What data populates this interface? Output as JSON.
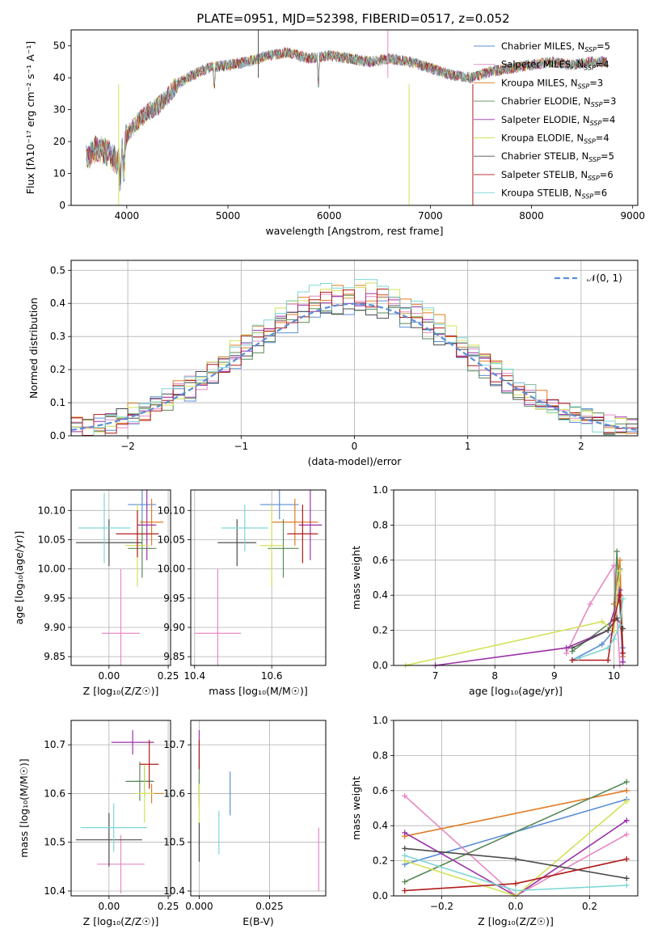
{
  "figure_title": "PLATE=0951, MJD=52398, FIBERID=0517, z=0.052",
  "colors": {
    "Chabrier MILES": "#5b8ed6",
    "Salpeter MILES": "#e78ac3",
    "Kroupa MILES": "#e07b24",
    "Chabrier ELODIE": "#5a8a5a",
    "Salpeter ELODIE": "#9b30a8",
    "Kroupa ELODIE": "#d4e157",
    "Chabrier STELIB": "#4d4d4d",
    "Salpeter STELIB": "#b01c1c",
    "Kroupa STELIB": "#7fd6d6",
    "normal_curve": "#5b8ed6",
    "grid": "#b0b0b0"
  },
  "chart_data": [
    {
      "id": "spectrum",
      "type": "line",
      "title": "PLATE=0951, MJD=52398, FIBERID=0517, z=0.052",
      "xlabel": "wavelength [Angstrom, rest frame]",
      "ylabel": "Flux [fλ10⁻¹⁷ erg cm⁻² s⁻¹ A⁻¹]",
      "xlim": [
        3450,
        9050
      ],
      "ylim": [
        0,
        55
      ],
      "xticks": [
        4000,
        5000,
        6000,
        7000,
        8000,
        9000
      ],
      "yticks": [
        0,
        10,
        20,
        30,
        40,
        50
      ],
      "grid": false,
      "legend_position": "upper-right",
      "continuum": {
        "x": [
          3600,
          3700,
          3800,
          3900,
          4000,
          4100,
          4200,
          4300,
          4400,
          4500,
          4600,
          4800,
          5000,
          5200,
          5400,
          5600,
          5800,
          6000,
          6200,
          6400,
          6600,
          6800,
          7000,
          7200,
          7400,
          7600,
          7800,
          8000,
          8200,
          8400,
          8600,
          8750
        ],
        "y": [
          15,
          18,
          17,
          14,
          22,
          26,
          29,
          31,
          34,
          38,
          40,
          43,
          44,
          45,
          47,
          48,
          46,
          47,
          46,
          45,
          46,
          45,
          43,
          41,
          40,
          42,
          43,
          44,
          45,
          44,
          45,
          45
        ]
      },
      "series": [
        {
          "name": "Chabrier MILES, N_SSP=5",
          "color": "#5b8ed6"
        },
        {
          "name": "Salpeter MILES, N_SSP=4",
          "color": "#e78ac3"
        },
        {
          "name": "Kroupa MILES, N_SSP=3",
          "color": "#e07b24"
        },
        {
          "name": "Chabrier ELODIE, N_SSP=3",
          "color": "#5a8a5a"
        },
        {
          "name": "Salpeter ELODIE, N_SSP=4",
          "color": "#9b30a8"
        },
        {
          "name": "Kroupa ELODIE, N_SSP=4",
          "color": "#d4e157"
        },
        {
          "name": "Chabrier STELIB, N_SSP=5",
          "color": "#4d4d4d"
        },
        {
          "name": "Salpeter STELIB, N_SSP=6",
          "color": "#b01c1c"
        },
        {
          "name": "Kroupa STELIB, N_SSP=6",
          "color": "#7fd6d6"
        }
      ]
    },
    {
      "id": "residuals",
      "type": "line",
      "xlabel": "(data-model)/error",
      "ylabel": "Normed distribution",
      "xlim": [
        -2.5,
        2.5
      ],
      "ylim": [
        0,
        0.53
      ],
      "xticks": [
        -2,
        -1,
        0,
        1,
        2
      ],
      "yticks": [
        0.0,
        0.1,
        0.2,
        0.3,
        0.4,
        0.5
      ],
      "grid": true,
      "legend_position": "upper-right",
      "legend": "𝒩(0, 1)",
      "bin_width": 0.1
    },
    {
      "id": "age_vs_Z",
      "type": "scatter",
      "xlabel": "Z [log₁₀(Z/Z☉)]",
      "ylabel": "age  [log₁₀(age/yr)]",
      "xlim": [
        -0.16,
        0.26
      ],
      "ylim": [
        9.835,
        10.135
      ],
      "xticks": [
        0.0,
        0.25
      ],
      "yticks": [
        9.85,
        9.9,
        9.95,
        10.0,
        10.05,
        10.1
      ],
      "grid": true,
      "points": [
        {
          "x": 0.14,
          "y": 10.11,
          "xerr": 0.06,
          "yerr": 0.025,
          "color": "#5b8ed6"
        },
        {
          "x": 0.05,
          "y": 9.89,
          "xerr": 0.08,
          "yerr": 0.11,
          "color": "#e78ac3"
        },
        {
          "x": 0.18,
          "y": 10.08,
          "xerr": 0.05,
          "yerr": 0.04,
          "color": "#e07b24"
        },
        {
          "x": 0.14,
          "y": 10.035,
          "xerr": 0.06,
          "yerr": 0.05,
          "color": "#5a8a5a"
        },
        {
          "x": 0.16,
          "y": 10.075,
          "xerr": 0.04,
          "yerr": 0.06,
          "color": "#9b30a8"
        },
        {
          "x": 0.12,
          "y": 10.04,
          "xerr": 0.05,
          "yerr": 0.07,
          "color": "#d4e157"
        },
        {
          "x": 0.0,
          "y": 10.045,
          "xerr": 0.14,
          "yerr": 0.04,
          "color": "#4d4d4d"
        },
        {
          "x": 0.12,
          "y": 10.06,
          "xerr": 0.09,
          "yerr": 0.04,
          "color": "#b01c1c"
        },
        {
          "x": -0.02,
          "y": 10.07,
          "xerr": 0.11,
          "yerr": 0.06,
          "color": "#7fd6d6"
        }
      ]
    },
    {
      "id": "age_vs_mass",
      "type": "scatter",
      "xlabel": "mass [log₁₀(M/M☉)]",
      "ylabel": "",
      "xlim": [
        10.39,
        10.74
      ],
      "ylim": [
        9.835,
        10.135
      ],
      "xticks": [
        10.4,
        10.6
      ],
      "yticks": [
        9.85,
        9.9,
        9.95,
        10.0,
        10.05,
        10.1
      ],
      "grid": true,
      "points": [
        {
          "x": 10.62,
          "y": 10.11,
          "xerr": 0.05,
          "yerr": 0.025,
          "color": "#5b8ed6"
        },
        {
          "x": 10.46,
          "y": 9.89,
          "xerr": 0.06,
          "yerr": 0.11,
          "color": "#e78ac3"
        },
        {
          "x": 10.66,
          "y": 10.08,
          "xerr": 0.06,
          "yerr": 0.04,
          "color": "#e07b24"
        },
        {
          "x": 10.63,
          "y": 10.035,
          "xerr": 0.04,
          "yerr": 0.05,
          "color": "#5a8a5a"
        },
        {
          "x": 10.7,
          "y": 10.075,
          "xerr": 0.03,
          "yerr": 0.06,
          "color": "#9b30a8"
        },
        {
          "x": 10.6,
          "y": 10.04,
          "xerr": 0.03,
          "yerr": 0.07,
          "color": "#d4e157"
        },
        {
          "x": 10.51,
          "y": 10.045,
          "xerr": 0.05,
          "yerr": 0.04,
          "color": "#4d4d4d"
        },
        {
          "x": 10.68,
          "y": 10.06,
          "xerr": 0.04,
          "yerr": 0.05,
          "color": "#b01c1c"
        },
        {
          "x": 10.53,
          "y": 10.07,
          "xerr": 0.06,
          "yerr": 0.04,
          "color": "#7fd6d6"
        }
      ]
    },
    {
      "id": "weight_vs_age",
      "type": "line",
      "xlabel": "age  [log₁₀(age/yr)]",
      "ylabel": "mass weight",
      "xlim": [
        6.3,
        10.4
      ],
      "ylim": [
        0,
        1.0
      ],
      "xticks": [
        7,
        8,
        9,
        10
      ],
      "yticks": [
        0.0,
        0.2,
        0.4,
        0.6,
        0.8,
        1.0
      ],
      "grid": true,
      "series": [
        {
          "color": "#5b8ed6",
          "x": [
            9.3,
            9.8,
            10.0,
            10.1,
            10.15
          ],
          "y": [
            0.03,
            0.12,
            0.2,
            0.55,
            0.1
          ]
        },
        {
          "color": "#e78ac3",
          "x": [
            9.2,
            9.6,
            10.0,
            10.1
          ],
          "y": [
            0.07,
            0.35,
            0.57,
            0.0
          ]
        },
        {
          "color": "#e07b24",
          "x": [
            10.0,
            10.1,
            10.15
          ],
          "y": [
            0.35,
            0.6,
            0.05
          ]
        },
        {
          "color": "#5a8a5a",
          "x": [
            9.3,
            10.0,
            10.05,
            10.15
          ],
          "y": [
            0.08,
            0.26,
            0.65,
            0.02
          ]
        },
        {
          "color": "#9b30a8",
          "x": [
            7.0,
            9.2,
            9.9,
            10.05,
            10.1,
            10.15
          ],
          "y": [
            0.0,
            0.1,
            0.2,
            0.36,
            0.43,
            0.02
          ]
        },
        {
          "color": "#d4e157",
          "x": [
            6.5,
            9.8,
            10.0,
            10.1
          ],
          "y": [
            0.0,
            0.25,
            0.2,
            0.54
          ]
        },
        {
          "color": "#4d4d4d",
          "x": [
            9.3,
            9.9,
            10.05,
            10.15
          ],
          "y": [
            0.1,
            0.2,
            0.27,
            0.21
          ]
        },
        {
          "color": "#b01c1c",
          "x": [
            9.3,
            9.9,
            10.0,
            10.1,
            10.15
          ],
          "y": [
            0.03,
            0.03,
            0.26,
            0.4,
            0.07
          ]
        },
        {
          "color": "#7fd6d6",
          "x": [
            9.4,
            9.9,
            10.0,
            10.1,
            10.15
          ],
          "y": [
            0.04,
            0.1,
            0.15,
            0.23,
            0.38
          ]
        }
      ]
    },
    {
      "id": "mass_vs_Z",
      "type": "scatter",
      "xlabel": "Z [log₁₀(Z/Z☉)]",
      "ylabel": "mass [log₁₀(M/M☉)]",
      "xlim": [
        -0.16,
        0.26
      ],
      "ylim": [
        10.39,
        10.75
      ],
      "xticks": [
        0.0,
        0.25
      ],
      "yticks": [
        10.4,
        10.5,
        10.6,
        10.7
      ],
      "grid": true,
      "points": [
        {
          "x": 0.15,
          "y": 10.625,
          "xerr": 0.04,
          "yerr": 0.03,
          "color": "#5b8ed6"
        },
        {
          "x": 0.05,
          "y": 10.455,
          "xerr": 0.1,
          "yerr": 0.06,
          "color": "#e78ac3"
        },
        {
          "x": 0.18,
          "y": 10.6,
          "xerr": 0.05,
          "yerr": 0.02,
          "color": "#e07b24"
        },
        {
          "x": 0.13,
          "y": 10.625,
          "xerr": 0.06,
          "yerr": 0.04,
          "color": "#5a8a5a"
        },
        {
          "x": 0.1,
          "y": 10.705,
          "xerr": 0.09,
          "yerr": 0.025,
          "color": "#9b30a8"
        },
        {
          "x": 0.15,
          "y": 10.6,
          "xerr": 0.04,
          "yerr": 0.06,
          "color": "#d4e157"
        },
        {
          "x": 0.0,
          "y": 10.505,
          "xerr": 0.14,
          "yerr": 0.055,
          "color": "#4d4d4d"
        },
        {
          "x": 0.17,
          "y": 10.66,
          "xerr": 0.04,
          "yerr": 0.05,
          "color": "#b01c1c"
        },
        {
          "x": 0.02,
          "y": 10.53,
          "xerr": 0.14,
          "yerr": 0.05,
          "color": "#7fd6d6"
        }
      ]
    },
    {
      "id": "mass_vs_ebv",
      "type": "scatter",
      "xlabel": "E(B-V)",
      "ylabel": "",
      "xlim": [
        -0.003,
        0.045
      ],
      "ylim": [
        10.39,
        10.75
      ],
      "xticks": [
        0.0,
        0.025
      ],
      "yticks": [
        10.4,
        10.5,
        10.6,
        10.7
      ],
      "grid": true,
      "points": [
        {
          "x": 0.011,
          "y": 10.6,
          "xerr": 0,
          "yerr": 0.045,
          "color": "#5b8ed6"
        },
        {
          "x": 0.0425,
          "y": 10.465,
          "xerr": 0,
          "yerr": 0.065,
          "color": "#e78ac3"
        },
        {
          "x": 0.0,
          "y": 10.6,
          "xerr": 0,
          "yerr": 0.03,
          "color": "#e07b24"
        },
        {
          "x": 0.0,
          "y": 10.62,
          "xerr": 0,
          "yerr": 0.04,
          "color": "#5a8a5a"
        },
        {
          "x": 0.0,
          "y": 10.69,
          "xerr": 0,
          "yerr": 0.04,
          "color": "#9b30a8"
        },
        {
          "x": 0.0,
          "y": 10.58,
          "xerr": 0,
          "yerr": 0.04,
          "color": "#d4e157"
        },
        {
          "x": 0.0,
          "y": 10.5,
          "xerr": 0,
          "yerr": 0.04,
          "color": "#4d4d4d"
        },
        {
          "x": 0.0,
          "y": 10.68,
          "xerr": 0,
          "yerr": 0.03,
          "color": "#b01c1c"
        },
        {
          "x": 0.007,
          "y": 10.52,
          "xerr": 0,
          "yerr": 0.045,
          "color": "#7fd6d6"
        }
      ]
    },
    {
      "id": "weight_vs_Z",
      "type": "line",
      "xlabel": "Z [log₁₀(Z/Z☉)]",
      "ylabel": "mass weight",
      "xlim": [
        -0.33,
        0.33
      ],
      "ylim": [
        0,
        1.0
      ],
      "xticks": [
        -0.2,
        0.0,
        0.2
      ],
      "yticks": [
        0.0,
        0.2,
        0.4,
        0.6,
        0.8,
        1.0
      ],
      "grid": true,
      "series": [
        {
          "color": "#5b8ed6",
          "x": [
            -0.3,
            0.3
          ],
          "y": [
            0.18,
            0.55
          ]
        },
        {
          "color": "#e78ac3",
          "x": [
            -0.3,
            0.0,
            0.3
          ],
          "y": [
            0.57,
            0.0,
            0.35
          ]
        },
        {
          "color": "#e07b24",
          "x": [
            -0.3,
            0.3
          ],
          "y": [
            0.34,
            0.6
          ]
        },
        {
          "color": "#5a8a5a",
          "x": [
            -0.3,
            0.3
          ],
          "y": [
            0.08,
            0.65
          ]
        },
        {
          "color": "#9b30a8",
          "x": [
            -0.3,
            0.0,
            0.3
          ],
          "y": [
            0.36,
            0.0,
            0.43
          ]
        },
        {
          "color": "#d4e157",
          "x": [
            -0.3,
            0.0,
            0.3
          ],
          "y": [
            0.2,
            0.0,
            0.54
          ]
        },
        {
          "color": "#4d4d4d",
          "x": [
            -0.3,
            0.0,
            0.3
          ],
          "y": [
            0.27,
            0.21,
            0.1
          ]
        },
        {
          "color": "#b01c1c",
          "x": [
            -0.3,
            0.0,
            0.3
          ],
          "y": [
            0.03,
            0.07,
            0.21
          ]
        },
        {
          "color": "#7fd6d6",
          "x": [
            -0.3,
            0.0,
            0.3
          ],
          "y": [
            0.23,
            0.03,
            0.06
          ]
        }
      ]
    }
  ]
}
